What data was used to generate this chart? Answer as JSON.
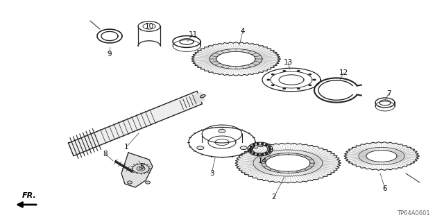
{
  "bg_color": "#ffffff",
  "lc": "#222222",
  "footer_code": "TP64A0601",
  "fig_w": 6.4,
  "fig_h": 3.2,
  "dpi": 100
}
